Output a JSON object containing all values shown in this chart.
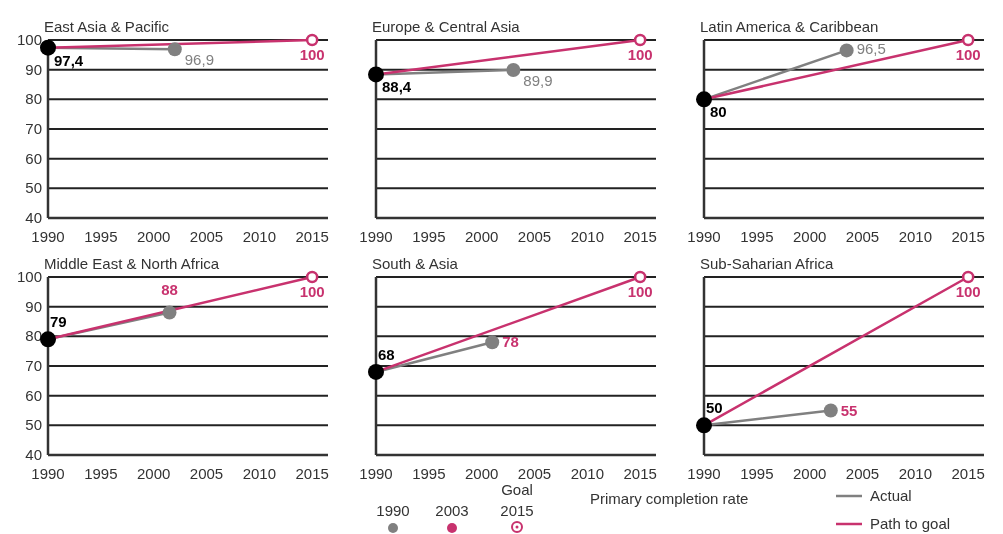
{
  "chart_data": [
    {
      "type": "line",
      "title": "East Asia & Pacific",
      "xlim": [
        1990,
        2016.5
      ],
      "xticks": [
        1990,
        1995,
        2000,
        2005,
        2010,
        2015
      ],
      "ylim": [
        40,
        100
      ],
      "yticks": [
        40,
        50,
        60,
        70,
        80,
        90,
        100
      ],
      "grid": "y",
      "marker": "circle",
      "series": [
        {
          "color": "#808080",
          "colors": [
            "#000000",
            "#808080"
          ],
          "x": [
            1990,
            2002
          ],
          "values": [
            97.4,
            96.9
          ],
          "value_labels": [
            "97,4",
            "96,9"
          ]
        },
        {
          "color": "#c8326e",
          "x": [
            1990,
            2015
          ],
          "values": [
            97.4,
            100
          ],
          "value_labels": [
            null,
            "100"
          ]
        }
      ]
    },
    {
      "type": "line",
      "title": "Europe & Central Asia",
      "xlim": [
        1990,
        2016.5
      ],
      "xticks": [
        1990,
        1995,
        2000,
        2005,
        2010,
        2015
      ],
      "ylim": [
        40,
        100
      ],
      "yticks": [
        40,
        50,
        60,
        70,
        80,
        90,
        100
      ],
      "grid": "y",
      "tick_labels": "x",
      "marker": "circle",
      "series": [
        {
          "color": "#808080",
          "colors": [
            "#000000",
            "#808080"
          ],
          "x": [
            1990,
            2003
          ],
          "values": [
            88.4,
            89.9
          ],
          "value_labels": [
            "88,4",
            "89,9"
          ]
        },
        {
          "color": "#c8326e",
          "x": [
            1990,
            2015
          ],
          "values": [
            88.4,
            100
          ],
          "value_labels": [
            null,
            "100"
          ]
        }
      ]
    },
    {
      "type": "line",
      "title": "Latin America & Caribbean",
      "xlim": [
        1990,
        2016.5
      ],
      "xticks": [
        1990,
        1995,
        2000,
        2005,
        2010,
        2015
      ],
      "ylim": [
        40,
        100
      ],
      "yticks": [
        40,
        50,
        60,
        70,
        80,
        90,
        100
      ],
      "grid": "y",
      "tick_labels": "x",
      "marker": "circle",
      "series": [
        {
          "color": "#808080",
          "colors": [
            "#000000",
            "#808080"
          ],
          "x": [
            1990,
            2003.5
          ],
          "values": [
            80,
            96.5
          ],
          "value_labels": [
            "80",
            "96,5"
          ]
        },
        {
          "color": "#c8326e",
          "x": [
            1990,
            2015
          ],
          "values": [
            80,
            100
          ],
          "value_labels": [
            null,
            "100"
          ]
        }
      ]
    },
    {
      "type": "line",
      "title": "Middle East & North Africa",
      "xlim": [
        1990,
        2016.5
      ],
      "xticks": [
        1990,
        1995,
        2000,
        2005,
        2010,
        2015
      ],
      "ylim": [
        40,
        100
      ],
      "yticks": [
        40,
        50,
        60,
        70,
        80,
        90,
        100
      ],
      "grid": "y",
      "marker": "circle",
      "series": [
        {
          "color": "#808080",
          "colors": [
            "#000000",
            "#808080"
          ],
          "x": [
            1990,
            2001.5
          ],
          "values": [
            79,
            88
          ],
          "value_labels": [
            "79",
            "88"
          ]
        },
        {
          "color": "#c8326e",
          "x": [
            1990,
            2015
          ],
          "values": [
            79,
            100
          ],
          "value_labels": [
            null,
            "100"
          ]
        }
      ]
    },
    {
      "type": "line",
      "title": "South & Asia",
      "xlim": [
        1990,
        2016.5
      ],
      "xticks": [
        1990,
        1995,
        2000,
        2005,
        2010,
        2015
      ],
      "ylim": [
        40,
        100
      ],
      "yticks": [
        40,
        50,
        60,
        70,
        80,
        90,
        100
      ],
      "grid": "y",
      "tick_labels": "x",
      "marker": "circle",
      "series": [
        {
          "color": "#808080",
          "colors": [
            "#000000",
            "#808080"
          ],
          "x": [
            1990,
            2001
          ],
          "values": [
            68,
            78
          ],
          "value_labels": [
            "68",
            "78"
          ]
        },
        {
          "color": "#c8326e",
          "x": [
            1990,
            2015
          ],
          "values": [
            68,
            100
          ],
          "value_labels": [
            null,
            "100"
          ]
        }
      ]
    },
    {
      "type": "line",
      "title": "Sub-Saharian Africa",
      "xlim": [
        1990,
        2016.5
      ],
      "xticks": [
        1990,
        1995,
        2000,
        2005,
        2010,
        2015
      ],
      "ylim": [
        40,
        100
      ],
      "yticks": [
        40,
        50,
        60,
        70,
        80,
        90,
        100
      ],
      "grid": "y",
      "tick_labels": "x",
      "marker": "circle",
      "legend": "bottom right",
      "annotations": [
        "Primary completion rate",
        "1990",
        "2003",
        "Goal 2015"
      ],
      "series": [
        {
          "name": "Actual",
          "color": "#808080",
          "colors": [
            "#000000",
            "#808080"
          ],
          "x": [
            1990,
            2002
          ],
          "values": [
            50,
            55
          ],
          "value_labels": [
            "50",
            "55"
          ]
        },
        {
          "name": "Path to goal",
          "color": "#c8326e",
          "x": [
            1990,
            2015
          ],
          "values": [
            50,
            100
          ],
          "value_labels": [
            null,
            "100"
          ]
        }
      ]
    }
  ]
}
